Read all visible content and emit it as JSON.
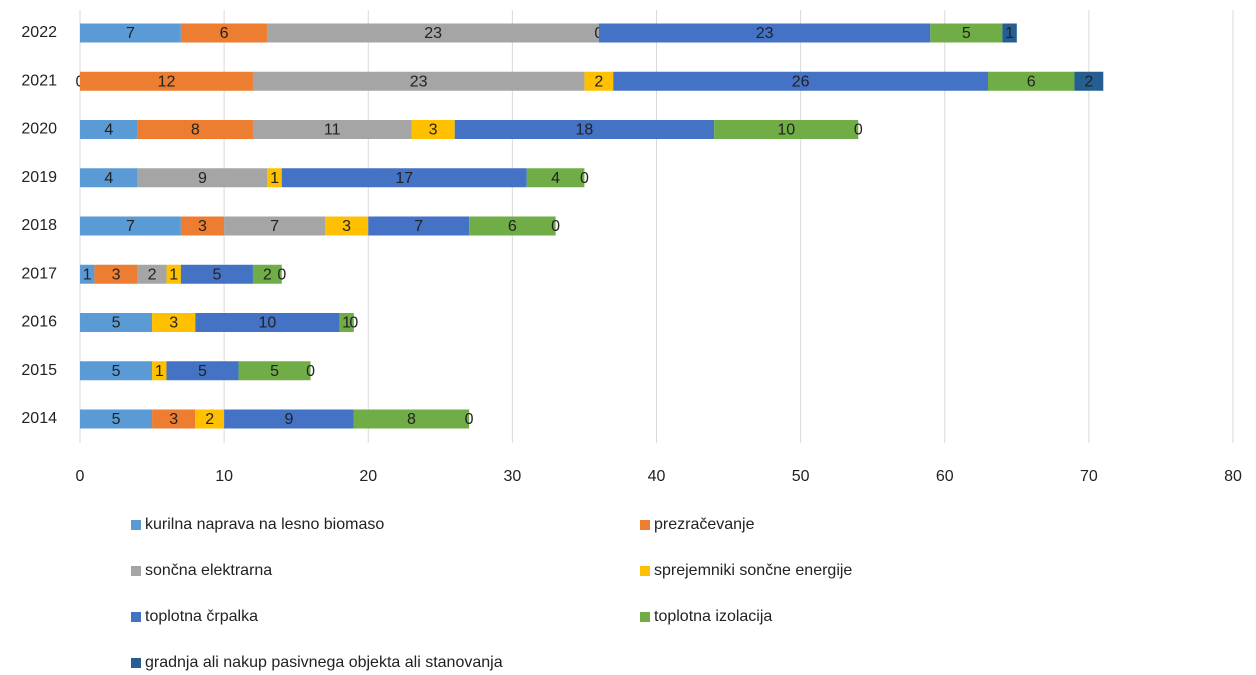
{
  "chart_data": {
    "type": "stacked-barh",
    "categories": [
      "2022",
      "2021",
      "2020",
      "2019",
      "2018",
      "2017",
      "2016",
      "2015",
      "2014"
    ],
    "series": [
      {
        "name": "kurilna naprava na lesno biomaso",
        "color": "#5b9bd5",
        "values": [
          7,
          0,
          4,
          4,
          7,
          1,
          5,
          5,
          5
        ]
      },
      {
        "name": "prezračevanje",
        "color": "#ed7d31",
        "values": [
          6,
          12,
          8,
          null,
          3,
          3,
          null,
          null,
          3
        ]
      },
      {
        "name": "sončna elektrarna",
        "color": "#a5a5a5",
        "values": [
          23,
          23,
          11,
          9,
          7,
          2,
          null,
          null,
          null
        ]
      },
      {
        "name": "sprejemniki sončne energije",
        "color": "#ffc000",
        "values": [
          0,
          2,
          3,
          1,
          3,
          1,
          3,
          1,
          2
        ]
      },
      {
        "name": "toplotna črpalka",
        "color": "#4472c4",
        "values": [
          23,
          26,
          18,
          17,
          7,
          5,
          10,
          5,
          9
        ]
      },
      {
        "name": "toplotna izolacija",
        "color": "#70ad47",
        "values": [
          5,
          6,
          10,
          4,
          6,
          2,
          1,
          5,
          8
        ]
      },
      {
        "name": "gradnja ali nakup pasivnega objekta ali stanovanja",
        "color": "#255e91",
        "values": [
          1,
          2,
          0,
          0,
          0,
          0,
          0,
          0,
          0
        ]
      }
    ],
    "xlim": [
      0,
      80
    ],
    "xticks": [
      0,
      10,
      20,
      30,
      40,
      50,
      60,
      70,
      80
    ],
    "grid": true,
    "legend": "bottom"
  }
}
